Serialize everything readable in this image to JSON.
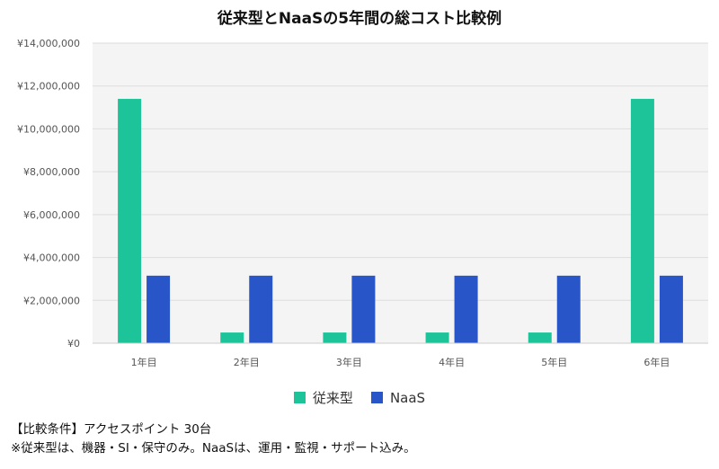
{
  "chart_data": {
    "type": "bar",
    "title": "従来型とNaaSの5年間の総コスト比較例",
    "categories": [
      "1年目",
      "2年目",
      "3年目",
      "4年目",
      "5年目",
      "6年目"
    ],
    "series": [
      {
        "name": "従来型",
        "color": "#1ec499",
        "values": [
          11400000,
          500000,
          500000,
          500000,
          500000,
          11400000
        ]
      },
      {
        "name": "NaaS",
        "color": "#2856c8",
        "values": [
          3150000,
          3150000,
          3150000,
          3150000,
          3150000,
          3150000
        ]
      }
    ],
    "ylim": [
      0,
      14000000
    ],
    "yticks": [
      0,
      2000000,
      4000000,
      6000000,
      8000000,
      10000000,
      12000000,
      14000000
    ],
    "ytick_labels": [
      "¥0",
      "¥2,000,000",
      "¥4,000,000",
      "¥6,000,000",
      "¥8,000,000",
      "¥10,000,000",
      "¥12,000,000",
      "¥14,000,000"
    ],
    "xlabel": "",
    "ylabel": "",
    "legend_position": "bottom",
    "grid": true
  },
  "notes": {
    "line1": "【比較条件】アクセスポイント 30台",
    "line2": "※従来型は、機器・SI・保守のみ。NaaSは、運用・監視・サポート込み。"
  }
}
